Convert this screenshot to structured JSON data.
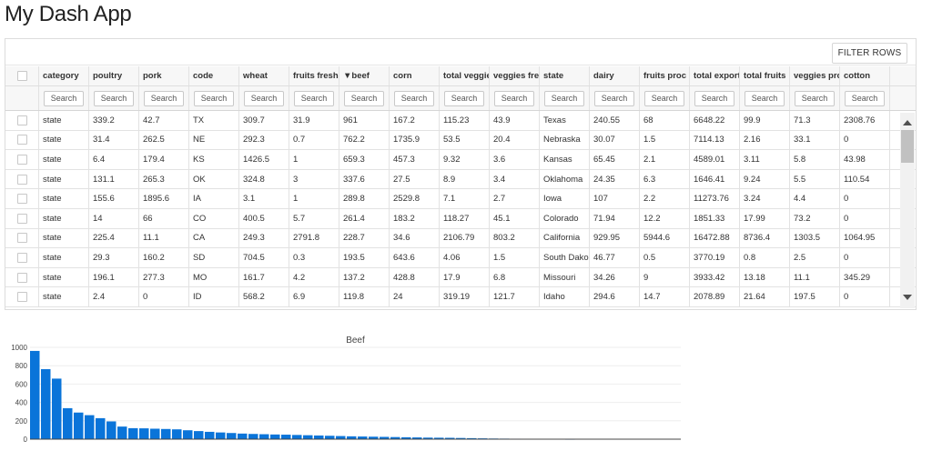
{
  "app": {
    "title": "My Dash App"
  },
  "toolbar": {
    "filter_label": "FILTER ROWS"
  },
  "table": {
    "columns": [
      "category",
      "poultry",
      "pork",
      "code",
      "wheat",
      "fruits fresh",
      "▼beef",
      "corn",
      "total veggie",
      "veggies fre",
      "state",
      "dairy",
      "fruits proc",
      "total export",
      "total fruits",
      "veggies pro",
      "cotton"
    ],
    "search_placeholder": "Search",
    "rows": [
      [
        "state",
        "339.2",
        "42.7",
        "TX",
        "309.7",
        "31.9",
        "961",
        "167.2",
        "115.23",
        "43.9",
        "Texas",
        "240.55",
        "68",
        "6648.22",
        "99.9",
        "71.3",
        "2308.76"
      ],
      [
        "state",
        "31.4",
        "262.5",
        "NE",
        "292.3",
        "0.7",
        "762.2",
        "1735.9",
        "53.5",
        "20.4",
        "Nebraska",
        "30.07",
        "1.5",
        "7114.13",
        "2.16",
        "33.1",
        "0"
      ],
      [
        "state",
        "6.4",
        "179.4",
        "KS",
        "1426.5",
        "1",
        "659.3",
        "457.3",
        "9.32",
        "3.6",
        "Kansas",
        "65.45",
        "2.1",
        "4589.01",
        "3.11",
        "5.8",
        "43.98"
      ],
      [
        "state",
        "131.1",
        "265.3",
        "OK",
        "324.8",
        "3",
        "337.6",
        "27.5",
        "8.9",
        "3.4",
        "Oklahoma",
        "24.35",
        "6.3",
        "1646.41",
        "9.24",
        "5.5",
        "110.54"
      ],
      [
        "state",
        "155.6",
        "1895.6",
        "IA",
        "3.1",
        "1",
        "289.8",
        "2529.8",
        "7.1",
        "2.7",
        "Iowa",
        "107",
        "2.2",
        "11273.76",
        "3.24",
        "4.4",
        "0"
      ],
      [
        "state",
        "14",
        "66",
        "CO",
        "400.5",
        "5.7",
        "261.4",
        "183.2",
        "118.27",
        "45.1",
        "Colorado",
        "71.94",
        "12.2",
        "1851.33",
        "17.99",
        "73.2",
        "0"
      ],
      [
        "state",
        "225.4",
        "11.1",
        "CA",
        "249.3",
        "2791.8",
        "228.7",
        "34.6",
        "2106.79",
        "803.2",
        "California",
        "929.95",
        "5944.6",
        "16472.88",
        "8736.4",
        "1303.5",
        "1064.95"
      ],
      [
        "state",
        "29.3",
        "160.2",
        "SD",
        "704.5",
        "0.3",
        "193.5",
        "643.6",
        "4.06",
        "1.5",
        "South Dako",
        "46.77",
        "0.5",
        "3770.19",
        "0.8",
        "2.5",
        "0"
      ],
      [
        "state",
        "196.1",
        "277.3",
        "MO",
        "161.7",
        "4.2",
        "137.2",
        "428.8",
        "17.9",
        "6.8",
        "Missouri",
        "34.26",
        "9",
        "3933.42",
        "13.18",
        "11.1",
        "345.29"
      ],
      [
        "state",
        "2.4",
        "0",
        "ID",
        "568.2",
        "6.9",
        "119.8",
        "24",
        "319.19",
        "121.7",
        "Idaho",
        "294.6",
        "14.7",
        "2078.89",
        "21.64",
        "197.5",
        "0"
      ]
    ]
  },
  "colors": {
    "bar": "#0a74d9",
    "grid": "#eeeeee",
    "axis": "#444444"
  },
  "icons": {
    "scroll_up": "triangle-up-icon",
    "scroll_down": "triangle-down-icon"
  },
  "chart_data": {
    "type": "bar",
    "title": "Beef",
    "xlabel": "",
    "ylabel": "",
    "ylim": [
      0,
      1000
    ],
    "yticks": [
      "0",
      "200",
      "400",
      "600",
      "800",
      "1000"
    ],
    "grid": true,
    "values": [
      961,
      762.2,
      659.3,
      337.6,
      289.8,
      261.4,
      228.7,
      193.5,
      137.2,
      119.8,
      118,
      114,
      111,
      107,
      97,
      88,
      80,
      73,
      67,
      61,
      57,
      54,
      51,
      49,
      46,
      43,
      40,
      37,
      34,
      31,
      29,
      27,
      25,
      23,
      21,
      19,
      17,
      16,
      15,
      13,
      11,
      9,
      7,
      6,
      5,
      4,
      3,
      2,
      1,
      0.5
    ]
  }
}
